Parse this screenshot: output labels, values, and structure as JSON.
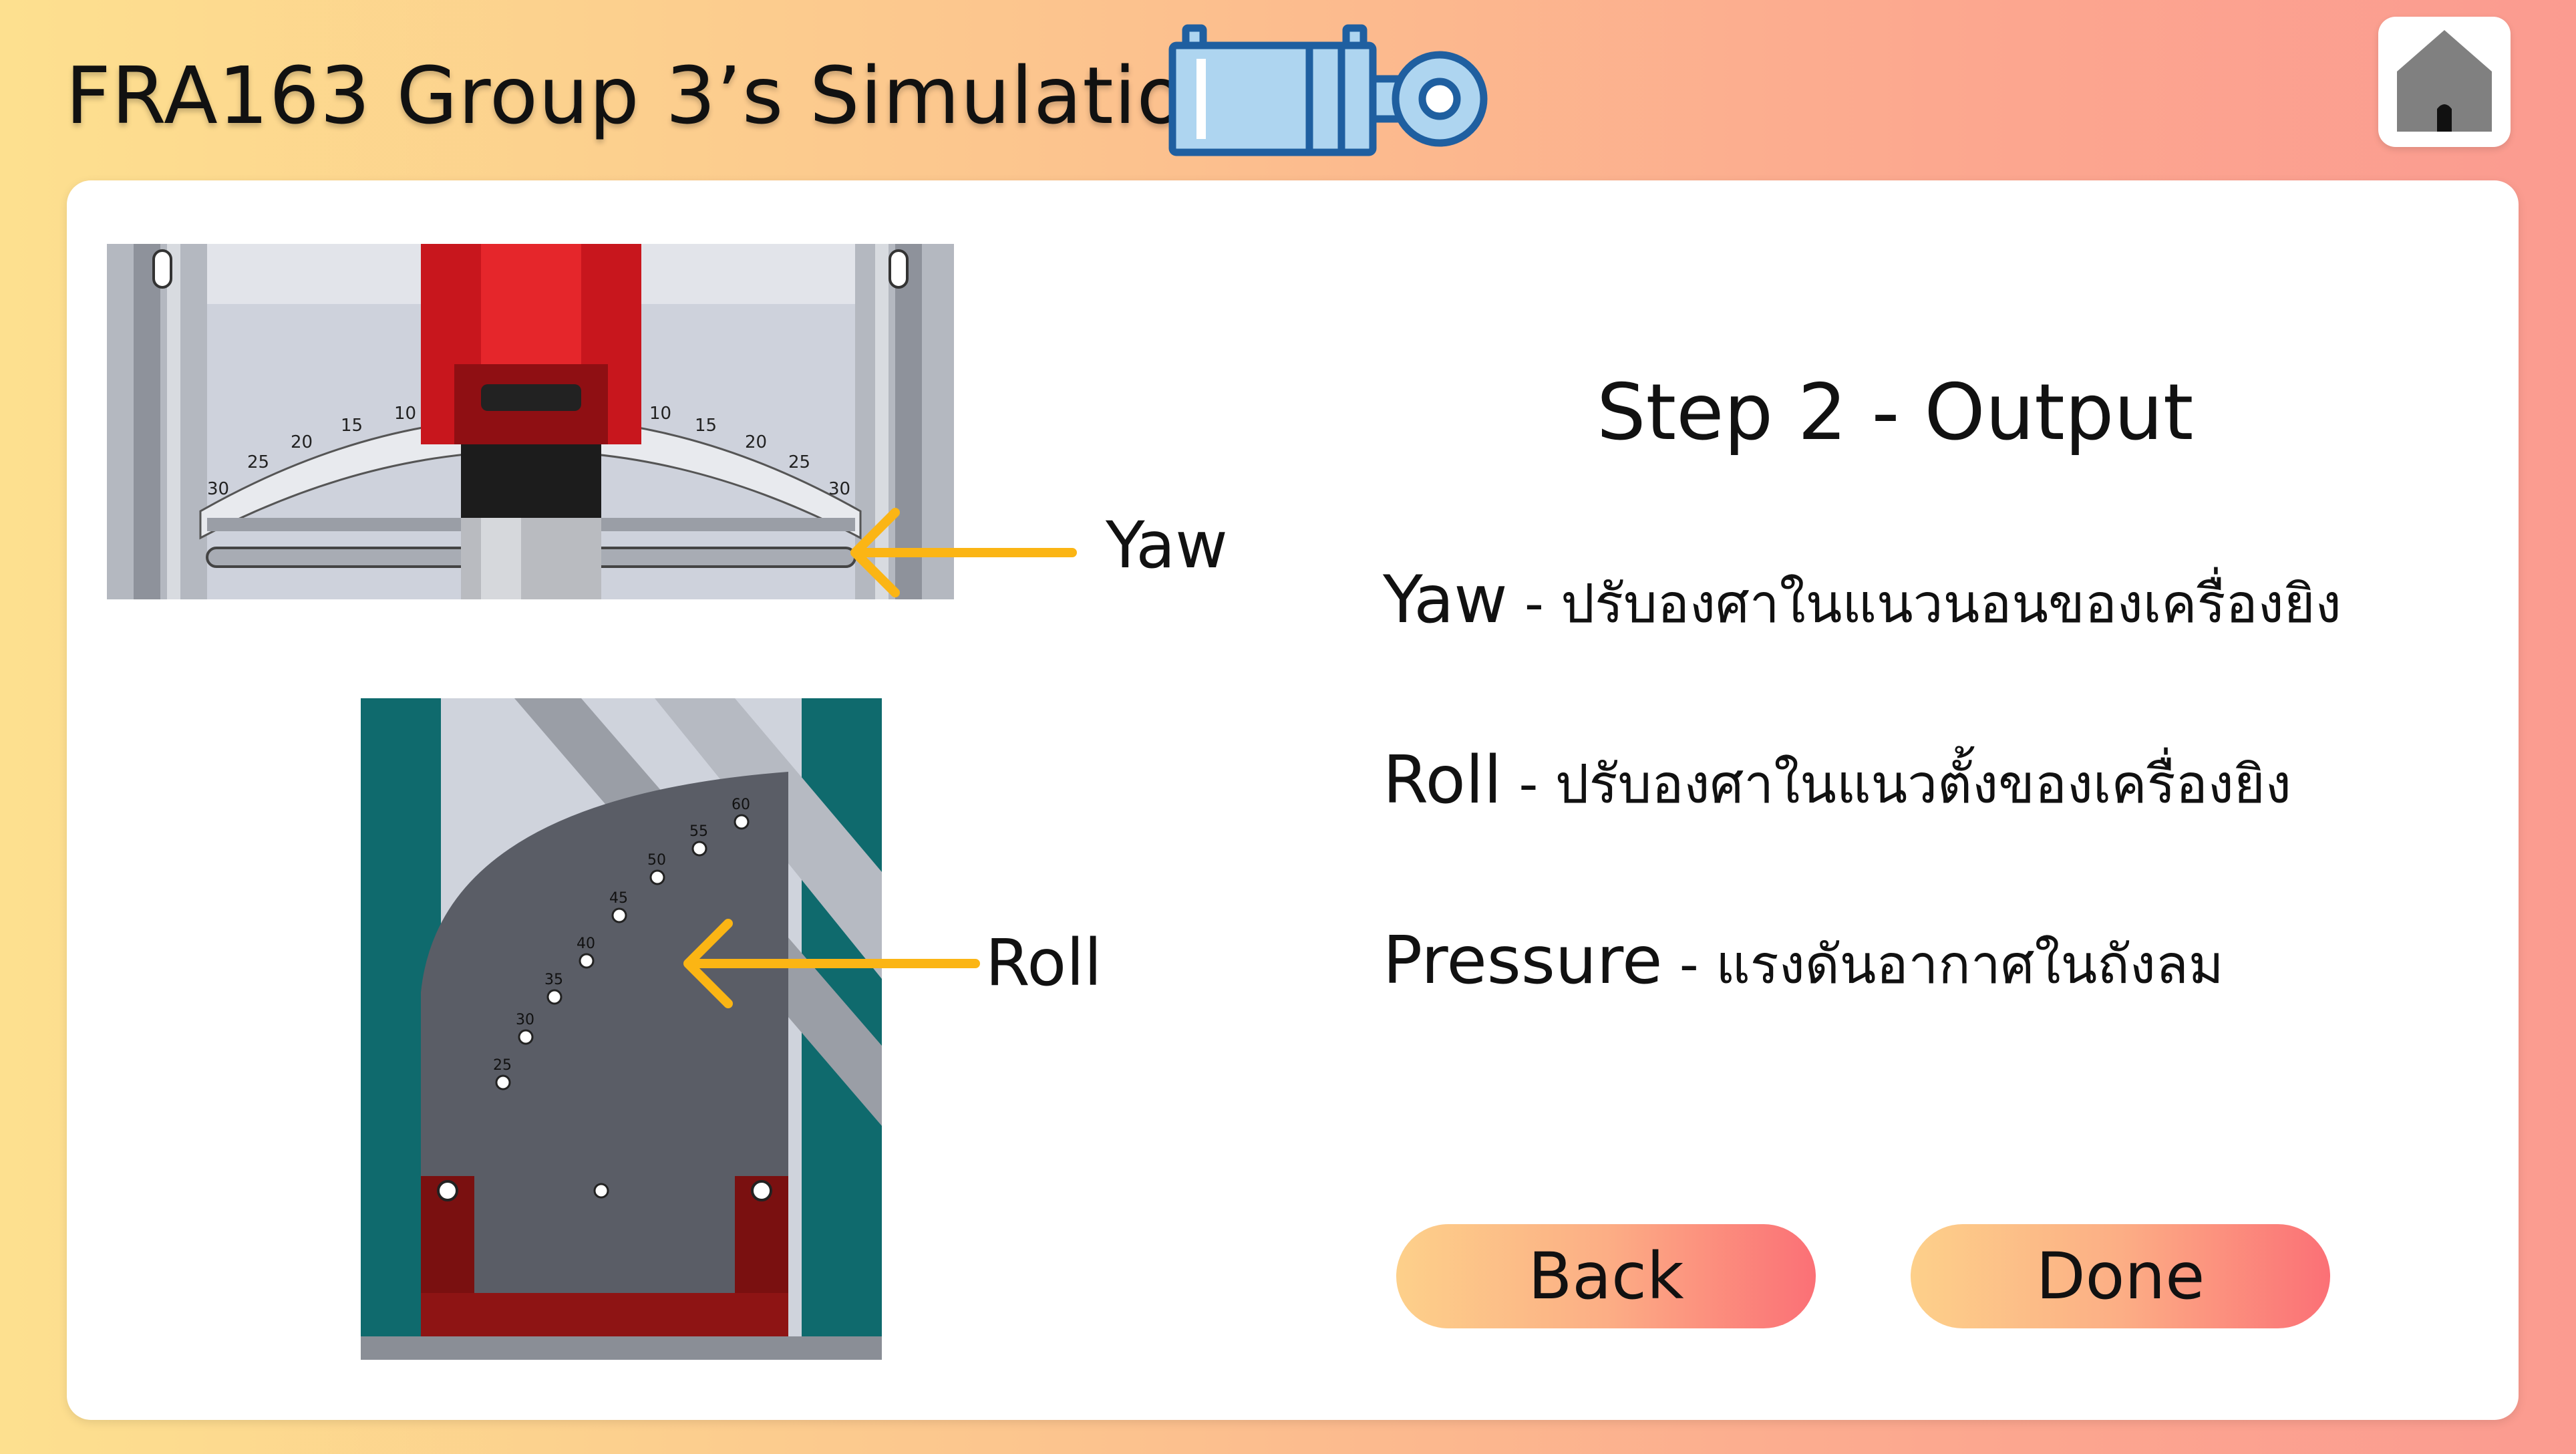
{
  "header": {
    "title": "FRA163 Group 3’s Simulation",
    "logo_icon": "pneumatic-cylinder-icon",
    "home_icon": "home-icon"
  },
  "images": {
    "yaw": {
      "label": "Yaw",
      "scale_ticks": [
        "30",
        "25",
        "20",
        "15",
        "10",
        "10",
        "15",
        "20",
        "25",
        "30"
      ]
    },
    "roll": {
      "label": "Roll",
      "scale_ticks": [
        "25",
        "30",
        "35",
        "40",
        "45",
        "50",
        "55",
        "60"
      ]
    }
  },
  "main": {
    "step_title": "Step 2 - Output",
    "items": [
      {
        "term": "Yaw",
        "dash": " - ",
        "desc": "ปรับองศาในแนวนอนของเครื่องยิง"
      },
      {
        "term": "Roll",
        "dash": " - ",
        "desc": "ปรับองศาในแนวตั้งของเครื่องยิง"
      },
      {
        "term": "Pressure",
        "dash": " - ",
        "desc": "แรงดันอากาศในถังลม"
      }
    ]
  },
  "buttons": {
    "back": "Back",
    "done": "Done"
  },
  "colors": {
    "accent_blue": "#1f5fa0",
    "logo_fill": "#aed5f0",
    "arrow": "#fbb514",
    "red_part": "#c8161d"
  }
}
